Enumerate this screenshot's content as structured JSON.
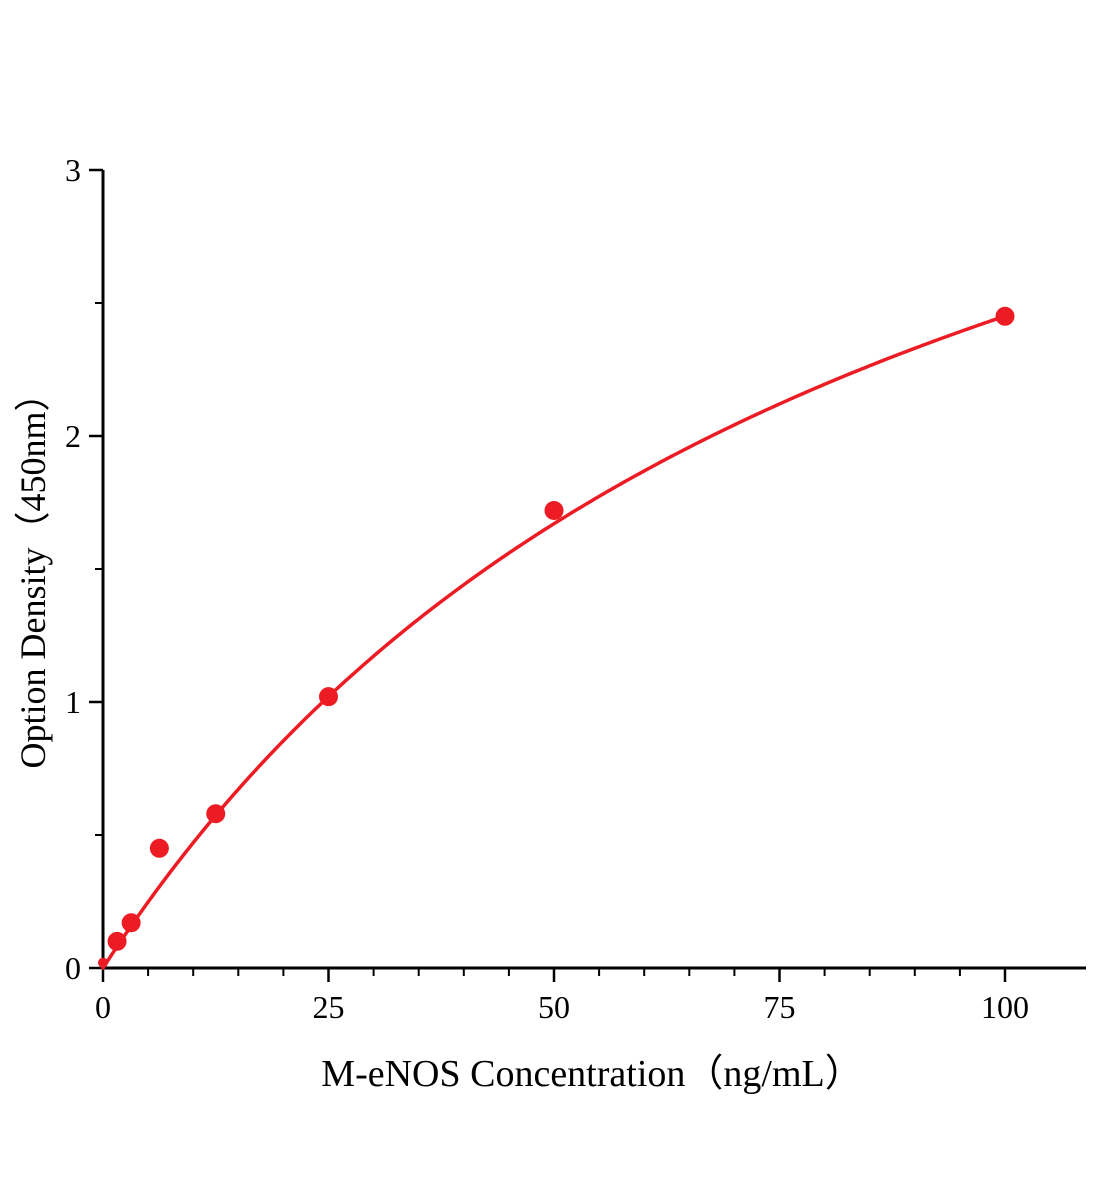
{
  "chart_data": {
    "type": "scatter",
    "title": "",
    "xlabel": "M-eNOS Concentration（ng/mL）",
    "ylabel": "Option Density（450nm）",
    "xlim": [
      0,
      100
    ],
    "ylim": [
      0,
      3
    ],
    "x_major_ticks": [
      0,
      25,
      50,
      75,
      100
    ],
    "x_minor_step": 5,
    "y_major_ticks": [
      0,
      1,
      2,
      3
    ],
    "y_minor_step": 0.5,
    "grid": false,
    "legend": "none",
    "points": [
      {
        "x": 0,
        "y": 0.02,
        "r": 5
      },
      {
        "x": 1.56,
        "y": 0.1,
        "r": 9.5
      },
      {
        "x": 3.12,
        "y": 0.17,
        "r": 9.5
      },
      {
        "x": 6.25,
        "y": 0.45,
        "r": 9.5
      },
      {
        "x": 12.5,
        "y": 0.58,
        "r": 9.5
      },
      {
        "x": 25,
        "y": 1.02,
        "r": 9.5
      },
      {
        "x": 50,
        "y": 1.72,
        "r": 9.5
      },
      {
        "x": 100,
        "y": 2.45,
        "r": 9.5
      }
    ],
    "fit_curve": {
      "model": "y = vmax * x / (km + x)",
      "vmax": 4.6,
      "km": 87.7
    },
    "colors": {
      "series": "#ed1c24",
      "axis": "#000000",
      "background": "#ffffff"
    }
  }
}
